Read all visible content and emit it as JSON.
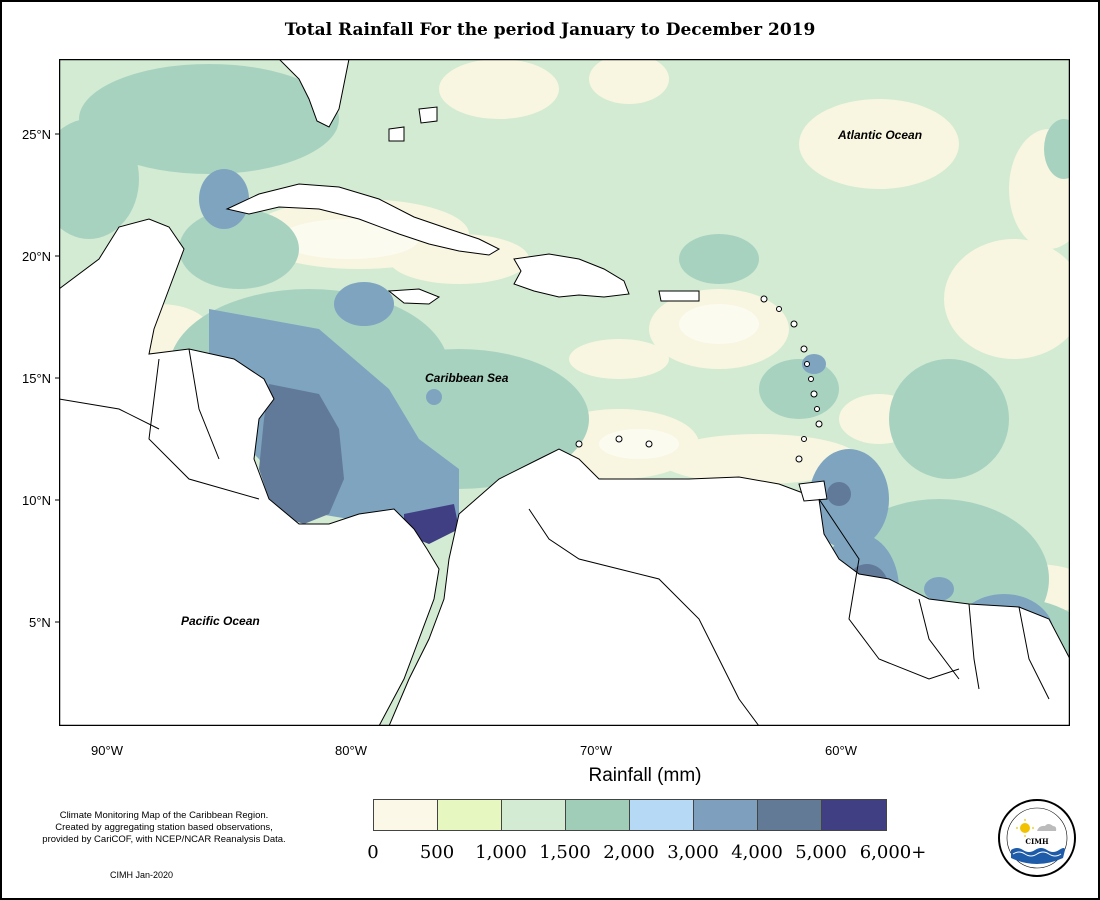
{
  "title": "Total Rainfall For the period January to December 2019",
  "map": {
    "labels": {
      "atlantic": "Atlantic Ocean",
      "caribbean": "Caribbean Sea",
      "pacific": "Pacific Ocean"
    },
    "lat_ticks": [
      "25°N",
      "20°N",
      "15°N",
      "10°N",
      "5°N"
    ],
    "lon_ticks": [
      "90°W",
      "80°W",
      "70°W",
      "60°W"
    ],
    "extent": {
      "lon": [
        -92,
        -51
      ],
      "lat": [
        1,
        28
      ]
    }
  },
  "legend": {
    "title": "Rainfall (mm)",
    "ticks": [
      "0",
      "500",
      "1,000",
      "1,500",
      "2,000",
      "3,000",
      "4,000",
      "5,000",
      "6,000+"
    ],
    "colors": [
      "#fbf8e8",
      "#e6f7bf",
      "#d3ebd3",
      "#9fcdb8",
      "#b6d9f5",
      "#7f9fbe",
      "#627a95",
      "#403f84"
    ]
  },
  "credit": {
    "line1": "Climate Monitoring Map of the Caribbean Region.",
    "line2": "Created by aggregating station based observations,",
    "line3": "provided by CariCOF, with NCEP/NCAR Reanalysis Data.",
    "stamp": "CIMH Jan-2020"
  },
  "logo": {
    "icon": "cimh-logo-icon",
    "text": "CIMH"
  }
}
